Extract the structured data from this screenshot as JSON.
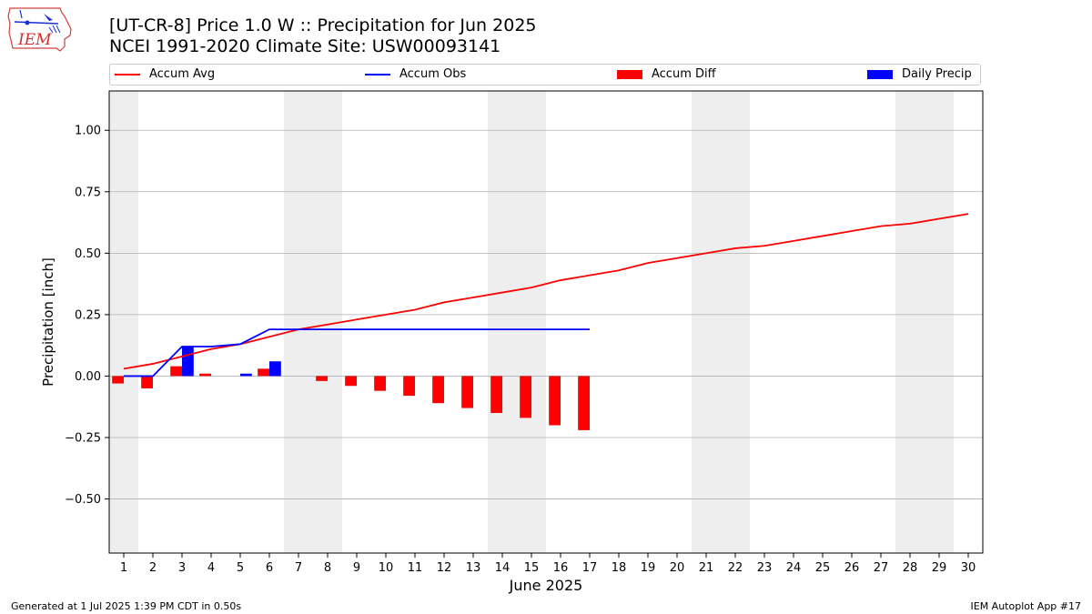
{
  "header": {
    "title_line1": "[UT-CR-8] Price 1.0 W :: Precipitation for Jun 2025",
    "title_line2": "NCEI 1991-2020 Climate Site: USW00093141"
  },
  "logo": {
    "text": "IEM",
    "icon": "iem-iowa-logo-icon"
  },
  "legend": {
    "accum_avg": "Accum Avg",
    "accum_obs": "Accum Obs",
    "accum_diff": "Accum Diff",
    "daily_precip": "Daily Precip"
  },
  "footer": {
    "generated": "Generated at 1 Jul 2025 1:39 PM CDT in 0.50s",
    "app": "IEM Autoplot App #17"
  },
  "chart_data": {
    "type": "line",
    "xlabel": "June 2025",
    "ylabel": "Precipitation [inch]",
    "xlim": [
      0.5,
      30.5
    ],
    "ylim": [
      -0.72,
      1.16
    ],
    "y_ticks": [
      -0.5,
      -0.25,
      0.0,
      0.25,
      0.5,
      0.75,
      1.0
    ],
    "y_tick_labels": [
      "−0.50",
      "−0.25",
      "0.00",
      "0.25",
      "0.50",
      "0.75",
      "1.00"
    ],
    "x_ticks": [
      1,
      2,
      3,
      4,
      5,
      6,
      7,
      8,
      9,
      10,
      11,
      12,
      13,
      14,
      15,
      16,
      17,
      18,
      19,
      20,
      21,
      22,
      23,
      24,
      25,
      26,
      27,
      28,
      29,
      30
    ],
    "grid": "horizontal",
    "weekend_shading": [
      [
        0.5,
        1.5
      ],
      [
        6.5,
        8.5
      ],
      [
        13.5,
        15.5
      ],
      [
        20.5,
        22.5
      ],
      [
        27.5,
        29.5
      ]
    ],
    "colors": {
      "avg": "#ff0000",
      "obs": "#0000ff",
      "diff": "#ff0000",
      "daily": "#0000ff",
      "shade": "#eeeeee",
      "grid": "#b0b0b0"
    },
    "series": [
      {
        "key": "accum_avg",
        "kind": "line",
        "x": [
          1,
          2,
          3,
          4,
          5,
          6,
          7,
          8,
          9,
          10,
          11,
          12,
          13,
          14,
          15,
          16,
          17,
          18,
          19,
          20,
          21,
          22,
          23,
          24,
          25,
          26,
          27,
          28,
          29,
          30
        ],
        "values": [
          0.03,
          0.05,
          0.08,
          0.11,
          0.13,
          0.16,
          0.19,
          0.21,
          0.23,
          0.25,
          0.27,
          0.3,
          0.32,
          0.34,
          0.36,
          0.39,
          0.41,
          0.43,
          0.46,
          0.48,
          0.5,
          0.52,
          0.53,
          0.55,
          0.57,
          0.59,
          0.61,
          0.62,
          0.64,
          0.66
        ]
      },
      {
        "key": "accum_obs",
        "kind": "line",
        "x": [
          1,
          2,
          3,
          4,
          5,
          6,
          7,
          8,
          9,
          10,
          11,
          12,
          13,
          14,
          15,
          16,
          17
        ],
        "values": [
          0.0,
          0.0,
          0.12,
          0.12,
          0.13,
          0.19,
          0.19,
          0.19,
          0.19,
          0.19,
          0.19,
          0.19,
          0.19,
          0.19,
          0.19,
          0.19,
          0.19
        ]
      },
      {
        "key": "accum_diff",
        "kind": "bar",
        "offset": -0.2,
        "x": [
          1,
          2,
          3,
          4,
          5,
          6,
          7,
          8,
          9,
          10,
          11,
          12,
          13,
          14,
          15,
          16,
          17
        ],
        "values": [
          -0.03,
          -0.05,
          0.04,
          0.01,
          0.0,
          0.03,
          0.0,
          -0.02,
          -0.04,
          -0.06,
          -0.08,
          -0.11,
          -0.13,
          -0.15,
          -0.17,
          -0.2,
          -0.22
        ]
      },
      {
        "key": "daily_precip",
        "kind": "bar",
        "offset": 0.2,
        "x": [
          1,
          2,
          3,
          4,
          5,
          6,
          7,
          8,
          9,
          10,
          11,
          12,
          13,
          14,
          15,
          16,
          17
        ],
        "values": [
          0.0,
          0.0,
          0.12,
          0.0,
          0.01,
          0.06,
          0.0,
          0.0,
          0.0,
          0.0,
          0.0,
          0.0,
          0.0,
          0.0,
          0.0,
          0.0,
          0.0
        ]
      }
    ]
  }
}
